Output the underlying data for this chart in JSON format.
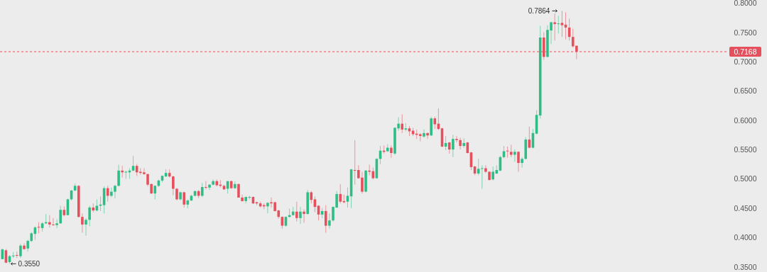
{
  "chart_data": {
    "type": "candlestick",
    "categories": [
      null,
      null,
      null,
      null,
      null,
      null,
      null,
      null,
      null,
      null,
      null,
      null,
      null,
      null,
      null,
      null,
      null,
      null,
      null,
      null,
      null,
      null,
      null,
      null,
      null,
      null,
      null,
      null,
      null,
      null,
      null,
      null,
      null,
      null,
      null,
      null,
      null,
      null,
      null,
      null,
      null,
      null,
      null,
      null,
      null,
      null,
      null,
      null,
      null,
      null,
      null,
      null,
      null,
      null,
      null,
      null,
      null,
      null,
      null,
      null,
      null,
      null,
      null,
      null,
      null,
      null,
      null,
      null,
      null,
      null,
      null,
      null,
      null,
      null,
      null,
      null,
      null,
      null,
      null,
      null,
      null,
      null,
      null,
      null,
      null,
      null,
      null,
      null,
      null,
      null,
      null,
      null,
      null,
      null,
      null,
      null,
      null,
      null,
      null,
      null,
      null,
      null,
      null,
      null,
      null,
      null,
      null,
      null,
      null,
      null,
      null,
      null,
      null,
      null,
      null,
      null,
      null,
      null,
      null,
      null,
      null,
      null,
      null,
      null,
      null,
      null,
      null,
      null,
      null,
      null,
      null,
      null,
      null,
      null,
      null,
      null,
      null,
      null,
      null,
      null,
      null,
      null,
      null,
      null,
      null,
      null,
      null,
      null,
      null,
      null,
      null,
      null,
      null,
      null,
      null,
      null,
      null,
      null,
      null,
      null,
      null,
      null,
      null,
      null,
      null,
      null,
      null,
      null,
      null,
      null,
      null,
      null,
      null,
      null,
      null,
      null,
      null,
      null,
      null,
      null,
      null,
      null,
      null,
      null,
      null,
      null,
      null,
      null,
      null,
      null,
      null,
      null,
      null,
      null,
      null,
      null,
      null,
      null,
      null,
      null
    ],
    "ohlc": [
      [
        0.363,
        0.381,
        0.363,
        0.3795
      ],
      [
        0.378,
        0.38,
        0.356,
        0.357
      ],
      [
        0.358,
        0.37,
        0.355,
        0.368
      ],
      [
        0.368,
        0.375,
        0.365,
        0.369
      ],
      [
        0.37,
        0.376,
        0.365,
        0.369
      ],
      [
        0.368,
        0.389,
        0.365,
        0.386
      ],
      [
        0.386,
        0.39,
        0.379,
        0.38
      ],
      [
        0.381,
        0.396,
        0.376,
        0.394
      ],
      [
        0.394,
        0.409,
        0.392,
        0.407
      ],
      [
        0.406,
        0.419,
        0.396,
        0.417
      ],
      [
        0.418,
        0.426,
        0.407,
        0.417
      ],
      [
        0.416,
        0.426,
        0.41,
        0.424
      ],
      [
        0.424,
        0.44,
        0.423,
        0.426
      ],
      [
        0.426,
        0.438,
        0.417,
        0.422
      ],
      [
        0.422,
        0.433,
        0.42,
        0.421
      ],
      [
        0.421,
        0.431,
        0.416,
        0.424
      ],
      [
        0.424,
        0.454,
        0.423,
        0.447
      ],
      [
        0.447,
        0.453,
        0.436,
        0.438
      ],
      [
        0.438,
        0.466,
        0.438,
        0.465
      ],
      [
        0.465,
        0.481,
        0.463,
        0.48
      ],
      [
        0.48,
        0.492,
        0.479,
        0.488
      ],
      [
        0.488,
        0.489,
        0.434,
        0.435
      ],
      [
        0.435,
        0.441,
        0.408,
        0.422
      ],
      [
        0.422,
        0.433,
        0.403,
        0.43
      ],
      [
        0.43,
        0.454,
        0.419,
        0.451
      ],
      [
        0.451,
        0.458,
        0.443,
        0.446
      ],
      [
        0.446,
        0.465,
        0.444,
        0.454
      ],
      [
        0.454,
        0.47,
        0.445,
        0.456
      ],
      [
        0.455,
        0.487,
        0.441,
        0.484
      ],
      [
        0.484,
        0.488,
        0.461,
        0.471
      ],
      [
        0.471,
        0.485,
        0.469,
        0.478
      ],
      [
        0.478,
        0.49,
        0.467,
        0.488
      ],
      [
        0.488,
        0.524,
        0.487,
        0.514
      ],
      [
        0.514,
        0.522,
        0.502,
        0.511
      ],
      [
        0.511,
        0.514,
        0.5,
        0.512
      ],
      [
        0.511,
        0.518,
        0.5,
        0.514
      ],
      [
        0.514,
        0.539,
        0.513,
        0.522
      ],
      [
        0.522,
        0.525,
        0.505,
        0.511
      ],
      [
        0.512,
        0.518,
        0.507,
        0.51
      ],
      [
        0.511,
        0.518,
        0.507,
        0.508
      ],
      [
        0.508,
        0.509,
        0.487,
        0.49
      ],
      [
        0.491,
        0.492,
        0.474,
        0.475
      ],
      [
        0.475,
        0.489,
        0.465,
        0.488
      ],
      [
        0.488,
        0.499,
        0.486,
        0.497
      ],
      [
        0.497,
        0.506,
        0.494,
        0.505
      ],
      [
        0.504,
        0.516,
        0.503,
        0.51
      ],
      [
        0.51,
        0.516,
        0.502,
        0.504
      ],
      [
        0.504,
        0.505,
        0.472,
        0.483
      ],
      [
        0.483,
        0.484,
        0.463,
        0.465
      ],
      [
        0.465,
        0.478,
        0.463,
        0.477
      ],
      [
        0.477,
        0.478,
        0.451,
        0.456
      ],
      [
        0.456,
        0.465,
        0.45,
        0.463
      ],
      [
        0.463,
        0.473,
        0.462,
        0.471
      ],
      [
        0.471,
        0.48,
        0.47,
        0.479
      ],
      [
        0.479,
        0.481,
        0.467,
        0.471
      ],
      [
        0.471,
        0.493,
        0.469,
        0.486
      ],
      [
        0.486,
        0.496,
        0.482,
        0.485
      ],
      [
        0.485,
        0.491,
        0.481,
        0.49
      ],
      [
        0.49,
        0.499,
        0.489,
        0.496
      ],
      [
        0.496,
        0.499,
        0.487,
        0.489
      ],
      [
        0.49,
        0.498,
        0.485,
        0.488
      ],
      [
        0.488,
        0.49,
        0.481,
        0.482
      ],
      [
        0.483,
        0.496,
        0.475,
        0.496
      ],
      [
        0.496,
        0.497,
        0.483,
        0.484
      ],
      [
        0.484,
        0.496,
        0.483,
        0.491
      ],
      [
        0.491,
        0.492,
        0.468,
        0.468
      ],
      [
        0.468,
        0.473,
        0.461,
        0.462
      ],
      [
        0.462,
        0.47,
        0.458,
        0.469
      ],
      [
        0.468,
        0.471,
        0.465,
        0.469
      ],
      [
        0.469,
        0.47,
        0.457,
        0.458
      ],
      [
        0.46,
        0.461,
        0.455,
        0.458
      ],
      [
        0.458,
        0.461,
        0.451,
        0.453
      ],
      [
        0.455,
        0.458,
        0.448,
        0.453
      ],
      [
        0.453,
        0.46,
        0.441,
        0.459
      ],
      [
        0.46,
        0.468,
        0.451,
        0.458
      ],
      [
        0.46,
        0.461,
        0.444,
        0.445
      ],
      [
        0.446,
        0.447,
        0.432,
        0.435
      ],
      [
        0.435,
        0.436,
        0.415,
        0.42
      ],
      [
        0.42,
        0.436,
        0.418,
        0.435
      ],
      [
        0.435,
        0.449,
        0.434,
        0.438
      ],
      [
        0.438,
        0.452,
        0.437,
        0.444
      ],
      [
        0.444,
        0.461,
        0.427,
        0.433
      ],
      [
        0.433,
        0.452,
        0.423,
        0.444
      ],
      [
        0.444,
        0.448,
        0.425,
        0.44
      ],
      [
        0.44,
        0.481,
        0.439,
        0.477
      ],
      [
        0.477,
        0.479,
        0.458,
        0.464
      ],
      [
        0.465,
        0.47,
        0.443,
        0.452
      ],
      [
        0.454,
        0.455,
        0.429,
        0.439
      ],
      [
        0.439,
        0.45,
        0.433,
        0.445
      ],
      [
        0.445,
        0.455,
        0.408,
        0.42
      ],
      [
        0.42,
        0.441,
        0.415,
        0.429
      ],
      [
        0.429,
        0.453,
        0.427,
        0.452
      ],
      [
        0.451,
        0.479,
        0.45,
        0.474
      ],
      [
        0.474,
        0.491,
        0.458,
        0.461
      ],
      [
        0.462,
        0.473,
        0.458,
        0.46
      ],
      [
        0.461,
        0.485,
        0.451,
        0.471
      ],
      [
        0.47,
        0.517,
        0.45,
        0.516
      ],
      [
        0.515,
        0.566,
        0.49,
        0.514
      ],
      [
        0.515,
        0.523,
        0.5,
        0.501
      ],
      [
        0.502,
        0.512,
        0.475,
        0.478
      ],
      [
        0.478,
        0.515,
        0.477,
        0.514
      ],
      [
        0.514,
        0.524,
        0.506,
        0.512
      ],
      [
        0.513,
        0.519,
        0.499,
        0.501
      ],
      [
        0.501,
        0.535,
        0.5,
        0.534
      ],
      [
        0.534,
        0.556,
        0.525,
        0.548
      ],
      [
        0.548,
        0.557,
        0.543,
        0.546
      ],
      [
        0.547,
        0.559,
        0.546,
        0.553
      ],
      [
        0.553,
        0.557,
        0.536,
        0.544
      ],
      [
        0.543,
        0.588,
        0.541,
        0.587
      ],
      [
        0.586,
        0.605,
        0.582,
        0.594
      ],
      [
        0.594,
        0.61,
        0.578,
        0.584
      ],
      [
        0.584,
        0.595,
        0.581,
        0.586
      ],
      [
        0.586,
        0.59,
        0.573,
        0.581
      ],
      [
        0.582,
        0.587,
        0.573,
        0.576
      ],
      [
        0.577,
        0.584,
        0.568,
        0.575
      ],
      [
        0.576,
        0.578,
        0.564,
        0.573
      ],
      [
        0.572,
        0.584,
        0.57,
        0.578
      ],
      [
        0.578,
        0.579,
        0.568,
        0.574
      ],
      [
        0.574,
        0.606,
        0.573,
        0.603
      ],
      [
        0.603,
        0.606,
        0.585,
        0.593
      ],
      [
        0.594,
        0.62,
        0.583,
        0.585
      ],
      [
        0.586,
        0.587,
        0.554,
        0.555
      ],
      [
        0.555,
        0.573,
        0.549,
        0.561
      ],
      [
        0.562,
        0.563,
        0.543,
        0.55
      ],
      [
        0.55,
        0.575,
        0.537,
        0.568
      ],
      [
        0.568,
        0.573,
        0.562,
        0.566
      ],
      [
        0.566,
        0.57,
        0.55,
        0.556
      ],
      [
        0.556,
        0.569,
        0.553,
        0.561
      ],
      [
        0.562,
        0.563,
        0.543,
        0.544
      ],
      [
        0.545,
        0.546,
        0.515,
        0.52
      ],
      [
        0.521,
        0.522,
        0.506,
        0.509
      ],
      [
        0.509,
        0.534,
        0.506,
        0.517
      ],
      [
        0.517,
        0.523,
        0.483,
        0.518
      ],
      [
        0.518,
        0.523,
        0.51,
        0.512
      ],
      [
        0.512,
        0.513,
        0.497,
        0.498
      ],
      [
        0.499,
        0.521,
        0.497,
        0.512
      ],
      [
        0.509,
        0.523,
        0.508,
        0.515
      ],
      [
        0.514,
        0.539,
        0.513,
        0.537
      ],
      [
        0.537,
        0.556,
        0.535,
        0.547
      ],
      [
        0.548,
        0.555,
        0.536,
        0.547
      ],
      [
        0.546,
        0.558,
        0.537,
        0.541
      ],
      [
        0.541,
        0.55,
        0.529,
        0.546
      ],
      [
        0.546,
        0.547,
        0.512,
        0.527
      ],
      [
        0.527,
        0.537,
        0.519,
        0.534
      ],
      [
        0.534,
        0.571,
        0.533,
        0.567
      ],
      [
        0.567,
        0.589,
        0.552,
        0.553
      ],
      [
        0.553,
        0.585,
        0.552,
        0.578
      ],
      [
        0.577,
        0.617,
        0.576,
        0.609
      ],
      [
        0.608,
        0.761,
        0.603,
        0.741
      ],
      [
        0.741,
        0.75,
        0.703,
        0.708
      ],
      [
        0.708,
        0.762,
        0.707,
        0.754
      ],
      [
        0.753,
        0.768,
        0.73,
        0.767
      ],
      [
        0.767,
        0.782,
        0.736,
        0.764
      ],
      [
        0.764,
        0.778,
        0.748,
        0.765
      ],
      [
        0.766,
        0.7864,
        0.742,
        0.762
      ],
      [
        0.763,
        0.784,
        0.738,
        0.758
      ],
      [
        0.758,
        0.773,
        0.736,
        0.742
      ],
      [
        0.742,
        0.756,
        0.724,
        0.726
      ],
      [
        0.727,
        0.727,
        0.704,
        0.7168
      ],
      null,
      null,
      null,
      null,
      null,
      null,
      null,
      null,
      null,
      null,
      null,
      null,
      null,
      null,
      null,
      null,
      null,
      null,
      null,
      null,
      null,
      null,
      null,
      null,
      null,
      null,
      null,
      null,
      null,
      null,
      null,
      null,
      null,
      null,
      null,
      null,
      null,
      null,
      null,
      null,
      null
    ],
    "ylim": [
      0.341,
      0.805
    ],
    "yticks": [
      {
        "value": 0.35,
        "label": "0.3500"
      },
      {
        "value": 0.4,
        "label": "0.4000"
      },
      {
        "value": 0.45,
        "label": "0.4500"
      },
      {
        "value": 0.5,
        "label": "0.5000"
      },
      {
        "value": 0.55,
        "label": "0.5500"
      },
      {
        "value": 0.6,
        "label": "0.6000"
      },
      {
        "value": 0.65,
        "label": "0.6500"
      },
      {
        "value": 0.7,
        "label": "0.7000"
      },
      {
        "value": 0.75,
        "label": "0.7500"
      },
      {
        "value": 0.8,
        "label": "0.8000"
      }
    ],
    "tick_labels": "y",
    "grid": false,
    "ref_lines": [
      {
        "axis": "y",
        "value": 0.7168,
        "label": "0.7168",
        "color": "#e5505c",
        "line_style": "dashed"
      }
    ],
    "annotations": [
      "0.7864",
      "0.3550"
    ]
  }
}
